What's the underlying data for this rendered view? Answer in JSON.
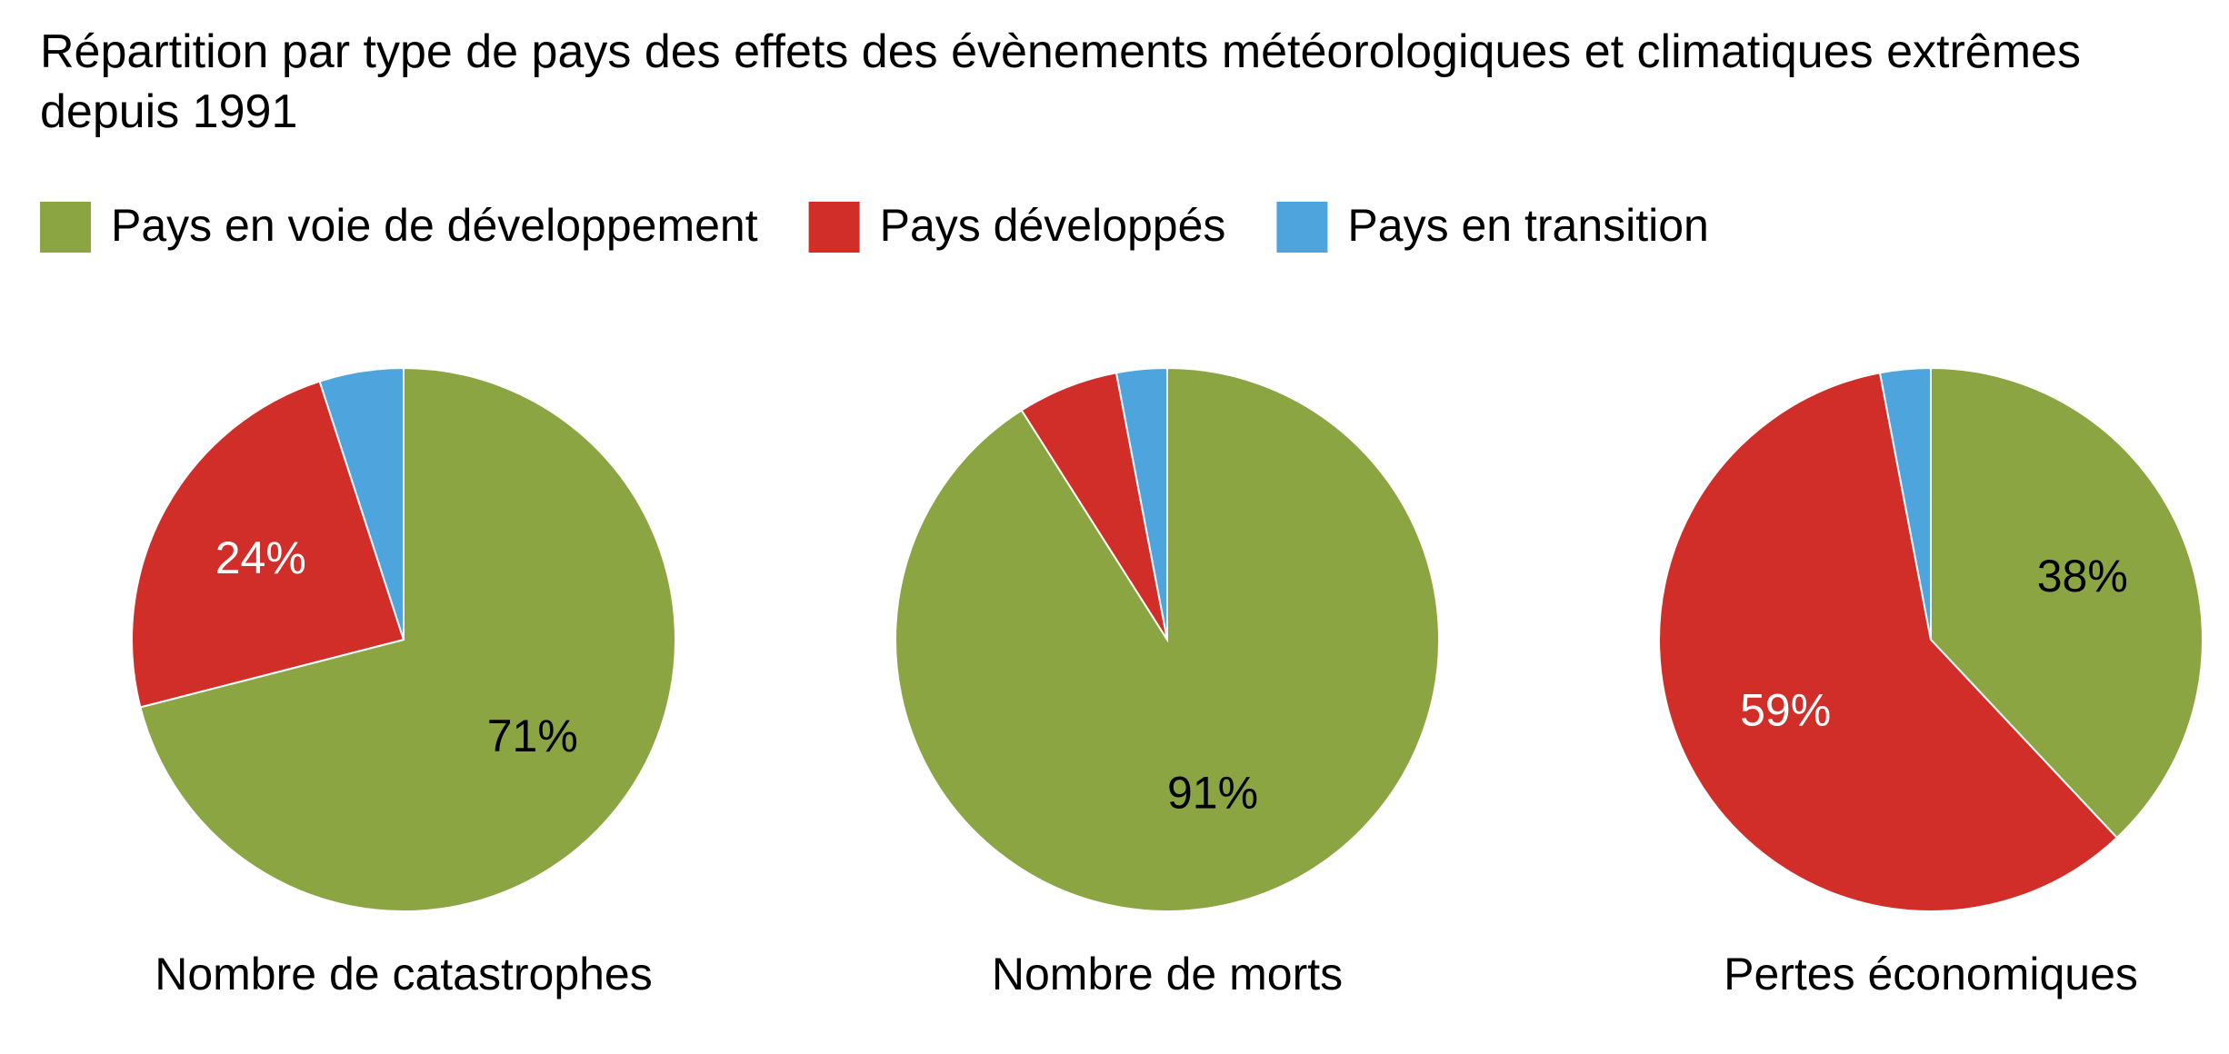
{
  "title": "Répartition par type de pays des effets des évènements météorologiques et climatiques extrêmes depuis 1991",
  "legend": {
    "labels": [
      "Pays en voie de développement",
      "Pays développés",
      "Pays en transition"
    ],
    "colors": [
      "#8ba543",
      "#d12d29",
      "#4ea4dc"
    ]
  },
  "chart_data": [
    {
      "type": "pie",
      "title": "Nombre de catastrophes",
      "values": [
        71,
        24,
        5
      ],
      "value_labels": [
        "71%",
        "24%",
        null
      ]
    },
    {
      "type": "pie",
      "title": "Nombre de morts",
      "values": [
        91,
        6,
        3
      ],
      "value_labels": [
        "91%",
        null,
        null
      ]
    },
    {
      "type": "pie",
      "title": "Pertes économiques",
      "values": [
        38,
        59,
        3
      ],
      "value_labels": [
        "38%",
        "59%",
        null
      ]
    }
  ]
}
